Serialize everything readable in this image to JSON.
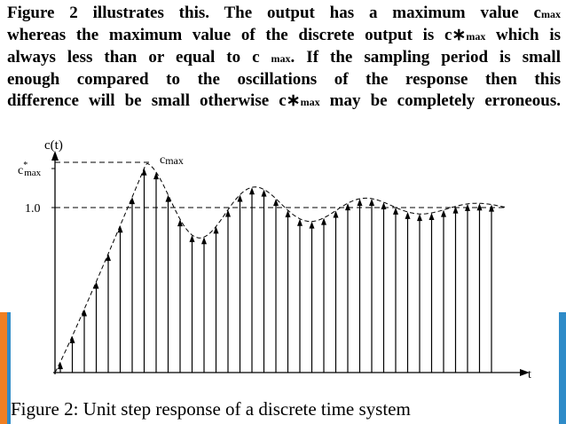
{
  "paragraph": {
    "lines": [
      [
        "Figure 2 illustrates this. The output has a maximum value c",
        "max"
      ],
      [
        "whereas the maximum value of the discrete output is c∗",
        "max",
        " which is"
      ],
      [
        "always less than or equal to c ",
        "max",
        ". If the sampling period is small"
      ],
      [
        "enough compared to the oscillations of the response then this"
      ],
      [
        "difference will be small otherwise c∗",
        "max",
        " may be completely erroneous."
      ]
    ]
  },
  "figure": {
    "y_axis_label": "c(t)",
    "c_star_max_label": {
      "base": "c",
      "sup": "*",
      "sub": "max"
    },
    "c_max_label": {
      "base": "c",
      "sub": "max"
    },
    "level_label": "1.0",
    "x_axis_label": "t",
    "caption": "Figure 2: Unit step response of a discrete time system"
  }
}
